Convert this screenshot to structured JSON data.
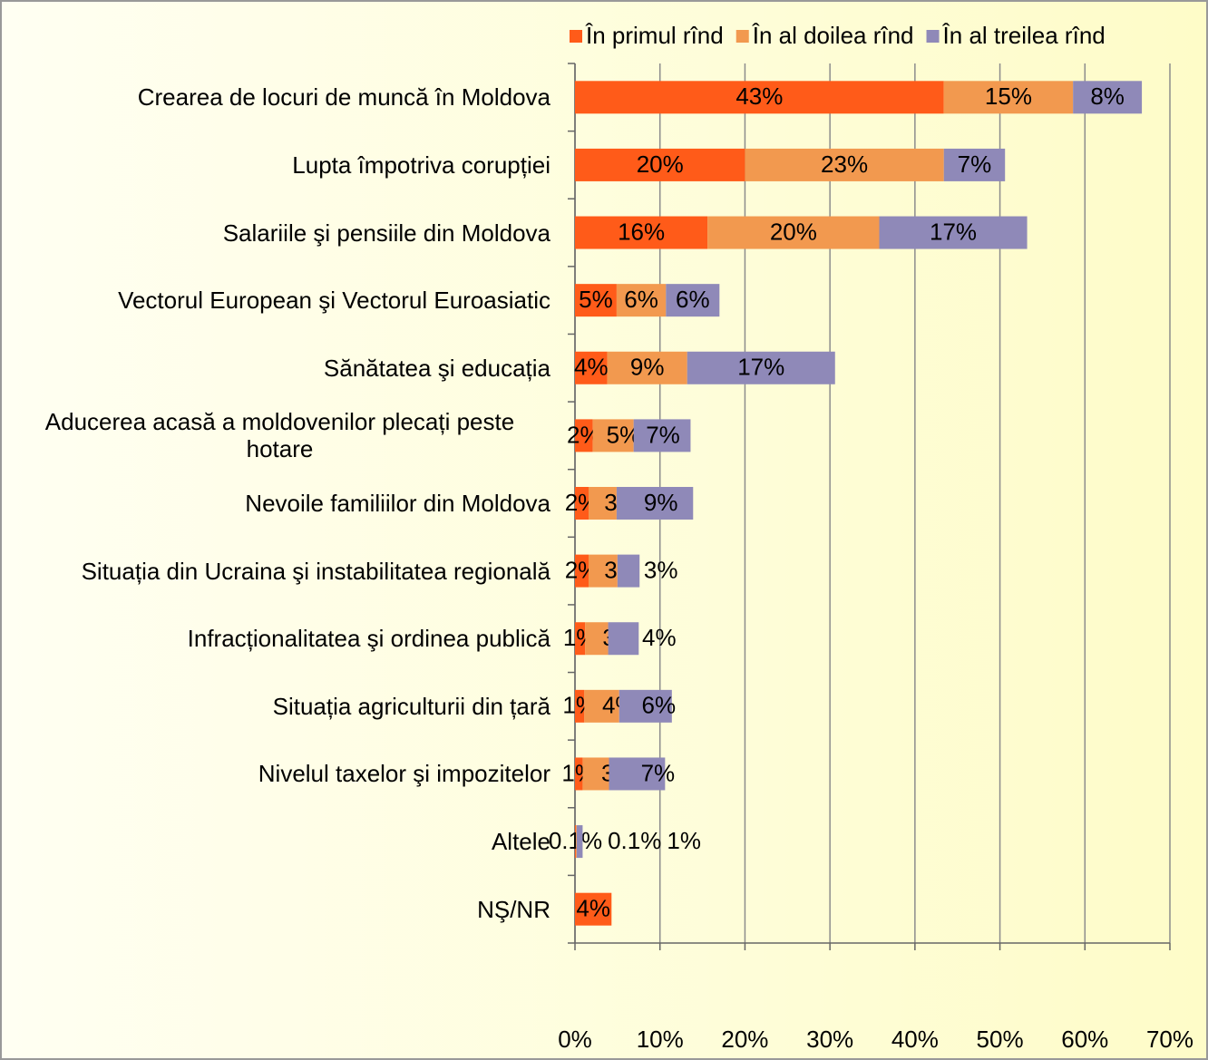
{
  "chart_data": {
    "type": "stacked-bar-horizontal",
    "categories": [
      "Crearea de locuri de muncă în Moldova",
      "Lupta împotriva corupției",
      "Salariile şi pensiile din Moldova",
      "Vectorul European şi Vectorul Euroasiatic",
      "Sănătatea şi educația",
      "Aducerea acasă a moldovenilor plecați peste hotare",
      "Nevoile familiilor din Moldova",
      "Situația din Ucraina şi instabilitatea regională",
      "Infracționalitatea şi ordinea publică",
      "Situația agriculturii din țară",
      "Nivelul taxelor şi impozitelor",
      "Altele",
      "NŞ/NR"
    ],
    "series": [
      {
        "name": "În primul rînd",
        "color": "#ff5b19",
        "values": [
          43.4,
          20.0,
          15.6,
          4.9,
          3.8,
          2.1,
          1.6,
          1.6,
          1.2,
          1.1,
          0.9,
          0.1,
          4.3
        ],
        "value_labels": [
          "43%",
          "20%",
          "16%",
          "5%",
          "4%",
          "2%",
          "2%",
          "2%",
          "1%",
          "1%",
          "1%",
          "0.1%",
          "4%"
        ]
      },
      {
        "name": "În al doilea rînd",
        "color": "#f2994f",
        "values": [
          15.2,
          23.4,
          20.2,
          5.8,
          9.4,
          4.8,
          3.3,
          3.4,
          2.7,
          4.1,
          3.1,
          0.1,
          null
        ],
        "value_labels": [
          "15%",
          "23%",
          "20%",
          "6%",
          "9%",
          "5%",
          "3%",
          "3%",
          "3%",
          "4%",
          "3%",
          "0.1%",
          null
        ]
      },
      {
        "name": "În al treilea rînd",
        "color": "#8f89b8",
        "values": [
          8.1,
          7.2,
          17.4,
          6.3,
          17.4,
          6.7,
          9.0,
          2.6,
          3.6,
          6.2,
          6.6,
          0.7,
          null
        ],
        "value_labels": [
          "8%",
          "7%",
          "17%",
          "6%",
          "17%",
          "7%",
          "9%",
          "3%",
          "4%",
          "6%",
          "7%",
          "1%",
          null
        ]
      }
    ],
    "xlim": [
      0,
      70
    ],
    "xticks": [
      {
        "value": 0,
        "label": "0%"
      },
      {
        "value": 10,
        "label": "10%"
      },
      {
        "value": 20,
        "label": "20%"
      },
      {
        "value": 30,
        "label": "30%"
      },
      {
        "value": 40,
        "label": "40%"
      },
      {
        "value": 50,
        "label": "50%"
      },
      {
        "value": 60,
        "label": "60%"
      },
      {
        "value": 70,
        "label": "70%"
      }
    ],
    "grid": true,
    "legend": "top"
  }
}
